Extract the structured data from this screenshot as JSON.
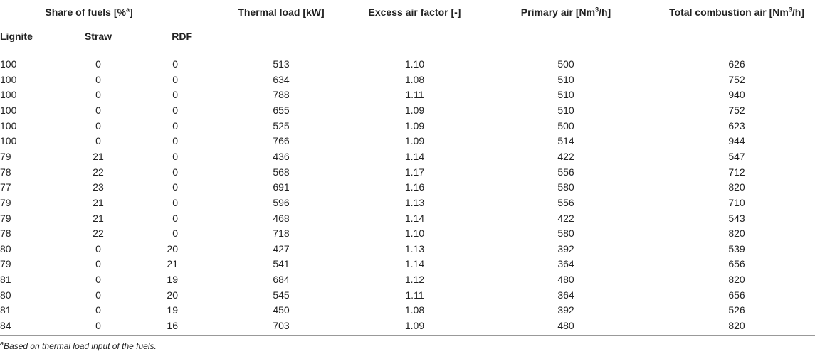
{
  "table": {
    "header": {
      "group": {
        "text": "Share of fuels [%",
        "sup": "a",
        "after": "]"
      },
      "columns": [
        {
          "text": "Lignite"
        },
        {
          "text": "Straw"
        },
        {
          "text": "RDF"
        },
        {
          "text": "Thermal load [kW]"
        },
        {
          "text": "Excess air factor [-]"
        },
        {
          "text": "Primary air [Nm",
          "sup": "3",
          "after": "/h]"
        },
        {
          "text": "Total combustion air [Nm",
          "sup": "3",
          "after": "/h]"
        }
      ]
    },
    "rows": [
      [
        "100",
        "0",
        "0",
        "513",
        "1.10",
        "500",
        "626"
      ],
      [
        "100",
        "0",
        "0",
        "634",
        "1.08",
        "510",
        "752"
      ],
      [
        "100",
        "0",
        "0",
        "788",
        "1.11",
        "510",
        "940"
      ],
      [
        "100",
        "0",
        "0",
        "655",
        "1.09",
        "510",
        "752"
      ],
      [
        "100",
        "0",
        "0",
        "525",
        "1.09",
        "500",
        "623"
      ],
      [
        "100",
        "0",
        "0",
        "766",
        "1.09",
        "514",
        "944"
      ],
      [
        "79",
        "21",
        "0",
        "436",
        "1.14",
        "422",
        "547"
      ],
      [
        "78",
        "22",
        "0",
        "568",
        "1.17",
        "556",
        "712"
      ],
      [
        "77",
        "23",
        "0",
        "691",
        "1.16",
        "580",
        "820"
      ],
      [
        "79",
        "21",
        "0",
        "596",
        "1.13",
        "556",
        "710"
      ],
      [
        "79",
        "21",
        "0",
        "468",
        "1.14",
        "422",
        "543"
      ],
      [
        "78",
        "22",
        "0",
        "718",
        "1.10",
        "580",
        "820"
      ],
      [
        "80",
        "0",
        "20",
        "427",
        "1.13",
        "392",
        "539"
      ],
      [
        "79",
        "0",
        "21",
        "541",
        "1.14",
        "364",
        "656"
      ],
      [
        "81",
        "0",
        "19",
        "684",
        "1.12",
        "480",
        "820"
      ],
      [
        "80",
        "0",
        "20",
        "545",
        "1.11",
        "364",
        "656"
      ],
      [
        "81",
        "0",
        "19",
        "450",
        "1.08",
        "392",
        "526"
      ],
      [
        "84",
        "0",
        "16",
        "703",
        "1.09",
        "480",
        "820"
      ]
    ],
    "footnote": {
      "sup": "a",
      "text": "Based on thermal load input of the fuels."
    }
  }
}
